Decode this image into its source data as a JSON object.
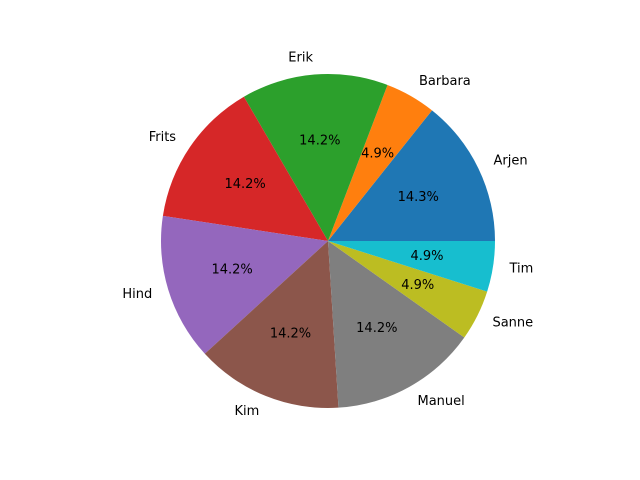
{
  "chart_data": {
    "type": "pie",
    "title": "",
    "slices": [
      {
        "label": "Arjen",
        "percent": 14.3,
        "color": "#1f77b4"
      },
      {
        "label": "Barbara",
        "percent": 4.9,
        "color": "#ff7f0e"
      },
      {
        "label": "Erik",
        "percent": 14.2,
        "color": "#2ca02c"
      },
      {
        "label": "Frits",
        "percent": 14.2,
        "color": "#d62728"
      },
      {
        "label": "Hind",
        "percent": 14.2,
        "color": "#9467bd"
      },
      {
        "label": "Kim",
        "percent": 14.2,
        "color": "#8c564b"
      },
      {
        "label": "Manuel",
        "percent": 14.2,
        "color": "#7f7f7f"
      },
      {
        "label": "Sanne",
        "percent": 4.9,
        "color": "#bcbd22"
      },
      {
        "label": "Tim",
        "percent": 4.9,
        "color": "#17becf"
      }
    ],
    "legend": "none"
  }
}
